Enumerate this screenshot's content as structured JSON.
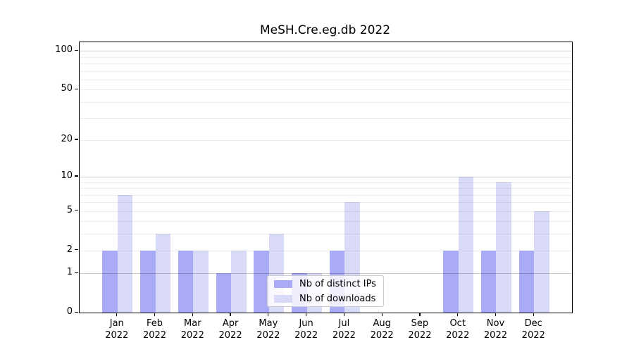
{
  "title": "MeSH.Cre.eg.db 2022",
  "chart_data": {
    "type": "bar",
    "title": "MeSH.Cre.eg.db 2022",
    "categories": [
      {
        "month": "Jan",
        "year": "2022"
      },
      {
        "month": "Feb",
        "year": "2022"
      },
      {
        "month": "Mar",
        "year": "2022"
      },
      {
        "month": "Apr",
        "year": "2022"
      },
      {
        "month": "May",
        "year": "2022"
      },
      {
        "month": "Jun",
        "year": "2022"
      },
      {
        "month": "Jul",
        "year": "2022"
      },
      {
        "month": "Aug",
        "year": "2022"
      },
      {
        "month": "Sep",
        "year": "2022"
      },
      {
        "month": "Oct",
        "year": "2022"
      },
      {
        "month": "Nov",
        "year": "2022"
      },
      {
        "month": "Dec",
        "year": "2022"
      }
    ],
    "series": [
      {
        "name": "Nb of distinct IPs",
        "color": "#a9abf6",
        "values": [
          2,
          2,
          2,
          1,
          2,
          1,
          2,
          0,
          0,
          2,
          2,
          2
        ]
      },
      {
        "name": "Nb of downloads",
        "color": "#d9daf8",
        "values": [
          7,
          3,
          2,
          2,
          3,
          1,
          6,
          0,
          0,
          10,
          9,
          5
        ]
      }
    ],
    "y_axis": {
      "scale": "log1p",
      "ticks": [
        0,
        1,
        2,
        5,
        10,
        20,
        50,
        100
      ],
      "minor_gridlines": [
        2,
        3,
        4,
        5,
        6,
        7,
        8,
        9,
        20,
        30,
        40,
        50,
        60,
        70,
        80,
        90
      ],
      "major_gridlines": [
        1,
        10,
        100
      ]
    },
    "legend_position": "lower center-right inside plot",
    "grid": true
  }
}
